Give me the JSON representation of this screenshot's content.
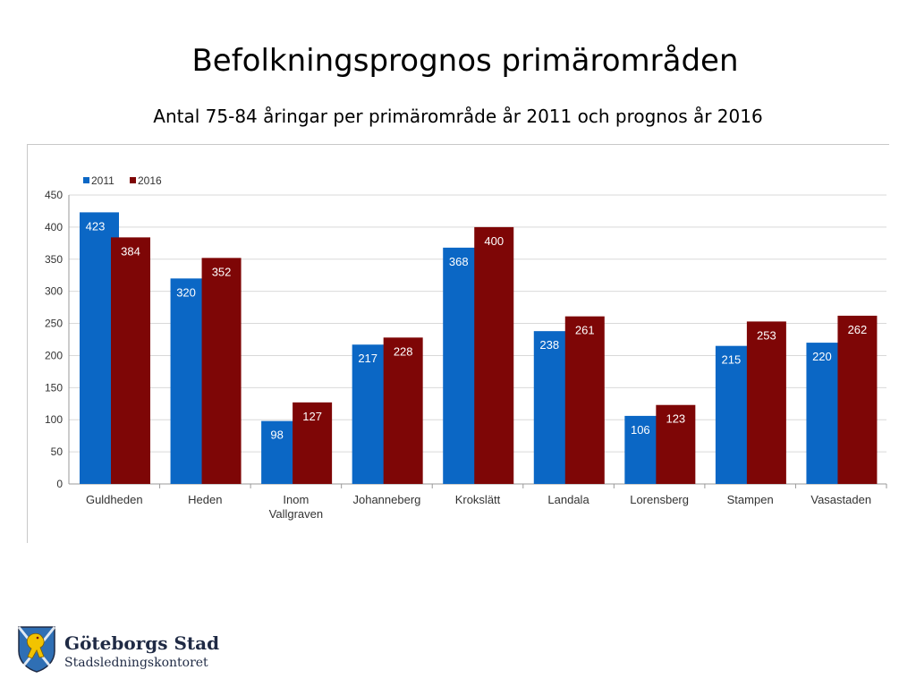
{
  "slide": {
    "title": "Befolkningsprognos primärområden",
    "subtitle": "Antal 75-84 åringar per primärområde år 2011 och prognos år 2016"
  },
  "logo": {
    "name": "Göteborgs Stad",
    "department": "Stadsledningskontoret"
  },
  "chart_data": {
    "type": "bar",
    "categories": [
      "Guldheden",
      "Heden",
      "Inom Vallgraven",
      "Johanneberg",
      "Krokslätt",
      "Landala",
      "Lorensberg",
      "Stampen",
      "Vasastaden"
    ],
    "category_lines": [
      [
        "Guldheden"
      ],
      [
        "Heden"
      ],
      [
        "Inom",
        "Vallgraven"
      ],
      [
        "Johanneberg"
      ],
      [
        "Krokslätt"
      ],
      [
        "Landala"
      ],
      [
        "Lorensberg"
      ],
      [
        "Stampen"
      ],
      [
        "Vasastaden"
      ]
    ],
    "series": [
      {
        "name": "2011",
        "color": "#0b67c5",
        "values": [
          423,
          320,
          98,
          217,
          368,
          238,
          106,
          215,
          220
        ]
      },
      {
        "name": "2016",
        "color": "#7e0606",
        "values": [
          384,
          352,
          127,
          228,
          400,
          261,
          123,
          253,
          262
        ]
      }
    ],
    "ylim": [
      0,
      450
    ],
    "yticks": [
      0,
      50,
      100,
      150,
      200,
      250,
      300,
      350,
      400,
      450
    ],
    "grid": true,
    "legend": "top-left",
    "data_labels": true
  }
}
